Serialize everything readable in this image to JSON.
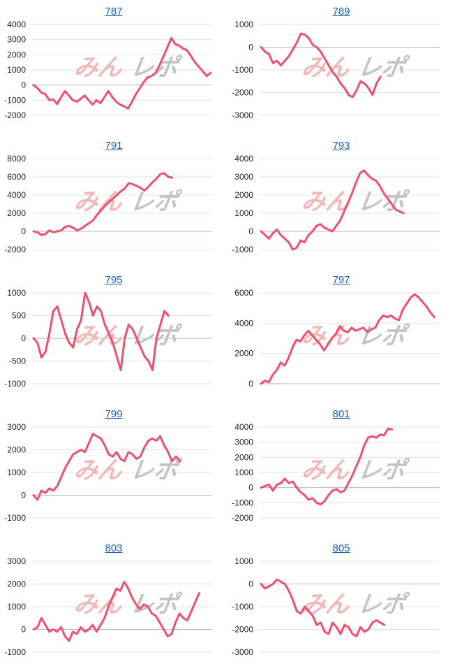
{
  "watermark": {
    "left": "みん",
    "right": "レポ"
  },
  "series_color": "#f0506e",
  "link_color": "#1a5fb4",
  "chart_data": [
    {
      "type": "line",
      "title": "787",
      "ylim": [
        -2000,
        4000
      ],
      "ticks": [
        -2000,
        -1000,
        0,
        1000,
        2000,
        3000,
        4000
      ],
      "values": [
        0,
        -200,
        -500,
        -600,
        -1000,
        -950,
        -1250,
        -800,
        -400,
        -700,
        -1000,
        -1100,
        -900,
        -700,
        -1000,
        -1300,
        -1000,
        -1200,
        -800,
        -400,
        -800,
        -1100,
        -1300,
        -1400,
        -1550,
        -1100,
        -600,
        -200,
        200,
        500,
        600,
        800,
        1300,
        1900,
        2500,
        3100,
        2700,
        2600,
        2400,
        2300,
        1900,
        1500,
        1200,
        900,
        600,
        800
      ]
    },
    {
      "type": "line",
      "title": "789",
      "ylim": [
        -3000,
        1000
      ],
      "ticks": [
        -3000,
        -2000,
        -1000,
        0,
        1000
      ],
      "values": [
        0,
        -200,
        -300,
        -700,
        -600,
        -800,
        -600,
        -400,
        -100,
        200,
        600,
        550,
        400,
        100,
        0,
        -200,
        -500,
        -800,
        -1100,
        -1300,
        -1600,
        -1800,
        -2100,
        -2200,
        -1900,
        -1500,
        -1600,
        -1800,
        -2100,
        -1600,
        -1300
      ]
    },
    {
      "type": "line",
      "title": "791",
      "ylim": [
        -2000,
        8000
      ],
      "ticks": [
        -2000,
        0,
        2000,
        4000,
        6000,
        8000
      ],
      "values": [
        0,
        -100,
        -400,
        -300,
        100,
        -100,
        0,
        100,
        500,
        600,
        400,
        100,
        300,
        600,
        900,
        1200,
        1800,
        2300,
        2800,
        3200,
        3600,
        4000,
        4400,
        4700,
        5300,
        5200,
        5000,
        4800,
        4500,
        4900,
        5400,
        5800,
        6300,
        6400,
        6000,
        5900
      ]
    },
    {
      "type": "line",
      "title": "793",
      "ylim": [
        -1000,
        4000
      ],
      "ticks": [
        -1000,
        0,
        1000,
        2000,
        3000,
        4000
      ],
      "values": [
        0,
        -200,
        -400,
        -100,
        100,
        -200,
        -400,
        -600,
        -1000,
        -900,
        -500,
        -600,
        -200,
        0,
        300,
        400,
        200,
        100,
        0,
        300,
        600,
        1100,
        1600,
        2100,
        2700,
        3200,
        3350,
        3100,
        2900,
        2800,
        2500,
        2100,
        1800,
        1500,
        1200,
        1100,
        1000
      ]
    },
    {
      "type": "line",
      "title": "795",
      "ylim": [
        -1000,
        1000
      ],
      "ticks": [
        -1000,
        -500,
        0,
        500,
        1000
      ],
      "values": [
        0,
        -100,
        -420,
        -300,
        100,
        600,
        700,
        400,
        100,
        -100,
        -200,
        200,
        400,
        1000,
        800,
        500,
        700,
        600,
        300,
        100,
        -100,
        -400,
        -700,
        0,
        300,
        200,
        0,
        -200,
        -400,
        -500,
        -700,
        0,
        300,
        600,
        500
      ]
    },
    {
      "type": "line",
      "title": "797",
      "ylim": [
        0,
        6000
      ],
      "ticks": [
        0,
        2000,
        4000,
        6000
      ],
      "values": [
        0,
        200,
        100,
        600,
        900,
        1400,
        1200,
        1700,
        2400,
        2900,
        2800,
        3200,
        3500,
        3200,
        2900,
        2600,
        2200,
        2600,
        3000,
        3300,
        3800,
        3500,
        3400,
        3700,
        3500,
        3600,
        3700,
        3400,
        3600,
        3700,
        4200,
        4500,
        4400,
        4500,
        4300,
        4200,
        4900,
        5300,
        5700,
        5900,
        5700,
        5400,
        5100,
        4700,
        4400
      ]
    },
    {
      "type": "line",
      "title": "799",
      "ylim": [
        -1000,
        3000
      ],
      "ticks": [
        -1000,
        0,
        1000,
        2000,
        3000
      ],
      "values": [
        0,
        -200,
        200,
        100,
        300,
        200,
        400,
        800,
        1200,
        1500,
        1800,
        1900,
        2000,
        1900,
        2300,
        2700,
        2600,
        2500,
        2200,
        1800,
        1700,
        1900,
        1600,
        1500,
        1900,
        1800,
        1600,
        1700,
        2100,
        2400,
        2500,
        2400,
        2600,
        2200,
        1900,
        1500,
        1700,
        1500
      ]
    },
    {
      "type": "line",
      "title": "801",
      "ylim": [
        -2000,
        4000
      ],
      "ticks": [
        -2000,
        -1000,
        0,
        1000,
        2000,
        3000,
        4000
      ],
      "values": [
        0,
        100,
        200,
        -200,
        200,
        300,
        600,
        300,
        400,
        0,
        -300,
        -500,
        -800,
        -700,
        -1000,
        -1100,
        -900,
        -500,
        -200,
        -100,
        -300,
        -200,
        300,
        800,
        1400,
        2000,
        2800,
        3300,
        3400,
        3300,
        3500,
        3450,
        3900,
        3850
      ]
    },
    {
      "type": "line",
      "title": "803",
      "ylim": [
        -1000,
        3000
      ],
      "ticks": [
        -1000,
        0,
        1000,
        2000,
        3000
      ],
      "values": [
        0,
        100,
        500,
        200,
        -100,
        0,
        -100,
        100,
        -300,
        -500,
        -100,
        -200,
        100,
        -100,
        0,
        200,
        -100,
        200,
        500,
        1000,
        1400,
        1800,
        1700,
        2100,
        1800,
        1400,
        1100,
        900,
        1100,
        1000,
        700,
        600,
        300,
        0,
        -300,
        -200,
        300,
        700,
        500,
        400,
        800,
        1200,
        1600
      ]
    },
    {
      "type": "line",
      "title": "805",
      "ylim": [
        -3000,
        1000
      ],
      "ticks": [
        -3000,
        -2000,
        -1000,
        0,
        1000
      ],
      "values": [
        0,
        -200,
        -100,
        0,
        200,
        100,
        0,
        -300,
        -700,
        -1200,
        -1300,
        -1000,
        -1200,
        -1400,
        -1800,
        -1700,
        -2100,
        -2200,
        -1700,
        -1900,
        -2200,
        -1800,
        -1900,
        -2200,
        -2300,
        -1900,
        -2100,
        -2000,
        -1700,
        -1600,
        -1700,
        -1800
      ]
    }
  ]
}
